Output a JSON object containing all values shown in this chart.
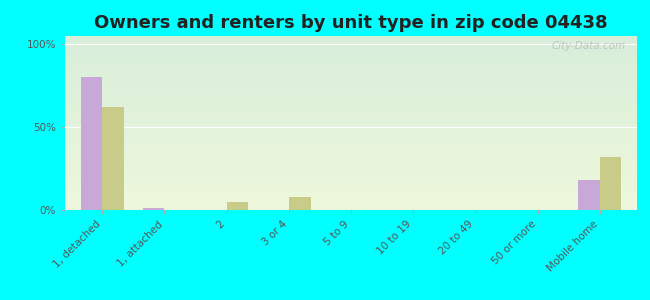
{
  "title": "Owners and renters by unit type in zip code 04438",
  "categories": [
    "1, detached",
    "1, attached",
    "2",
    "3 or 4",
    "5 to 9",
    "10 to 19",
    "20 to 49",
    "50 or more",
    "Mobile home"
  ],
  "owner_values": [
    80,
    1,
    0,
    0,
    0,
    0,
    0,
    0,
    18
  ],
  "renter_values": [
    62,
    0,
    5,
    8,
    0,
    0,
    0,
    0,
    32
  ],
  "owner_color": "#c8a8d8",
  "renter_color": "#c8cc88",
  "outer_bg_color": "#00ffff",
  "bg_top_color": "#d8eeda",
  "bg_bottom_color": "#eef8dc",
  "yticks": [
    0,
    50,
    100
  ],
  "ytick_labels": [
    "0%",
    "50%",
    "100%"
  ],
  "ylim_max": 105,
  "bar_width": 0.35,
  "watermark": "City-Data.com",
  "title_fontsize": 13,
  "tick_fontsize": 7.5,
  "legend_fontsize": 9
}
